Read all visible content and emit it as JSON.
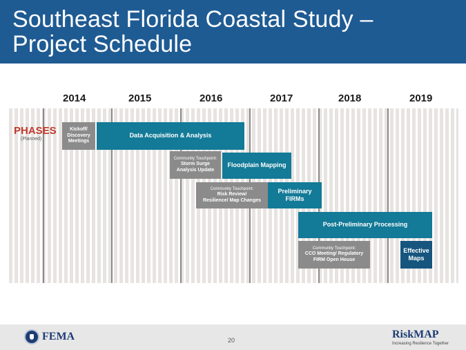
{
  "slide": {
    "title_line1": "Southeast Florida Coastal Study –",
    "title_line2": "Project Schedule"
  },
  "timeline": {
    "years": [
      "2014",
      "2015",
      "2016",
      "2017",
      "2018",
      "2019"
    ],
    "phases_label": "PHASES",
    "planned_label": "(Planned)",
    "bars": {
      "kickoff": [
        "Kickoff/",
        "Discovery",
        "Meetings"
      ],
      "data_acq": [
        "Data Acquisition & Analysis"
      ],
      "storm": {
        "header": "Community Touchpoint:",
        "lines": [
          "Storm Surge",
          "Analysis Update"
        ]
      },
      "floodplain": [
        "Floodplain Mapping"
      ],
      "risk": {
        "header": "Community Touchpoint:",
        "lines": [
          "Risk Review/",
          "Resilience/ Map Changes"
        ]
      },
      "prelim": [
        "Preliminary",
        "FIRMs"
      ],
      "postprelim": [
        "Post-Preliminary Processing"
      ],
      "cco": {
        "header": "Community Touchpoint:",
        "lines": [
          "CCO Meeting/ Regulatory",
          "FIRM Open House"
        ]
      },
      "effective": [
        "Effective",
        "Maps"
      ]
    }
  },
  "footer": {
    "fema": "FEMA",
    "page_number": "20",
    "riskmap": "RiskMAP",
    "riskmap_tagline": "Increasing Resilience Together"
  },
  "colors": {
    "title_bar": "#1f5b93",
    "phases_red": "#c0392b",
    "bar_gray": "#8b8b8b",
    "bar_teal": "#137a97",
    "bar_navy": "#15557e"
  }
}
